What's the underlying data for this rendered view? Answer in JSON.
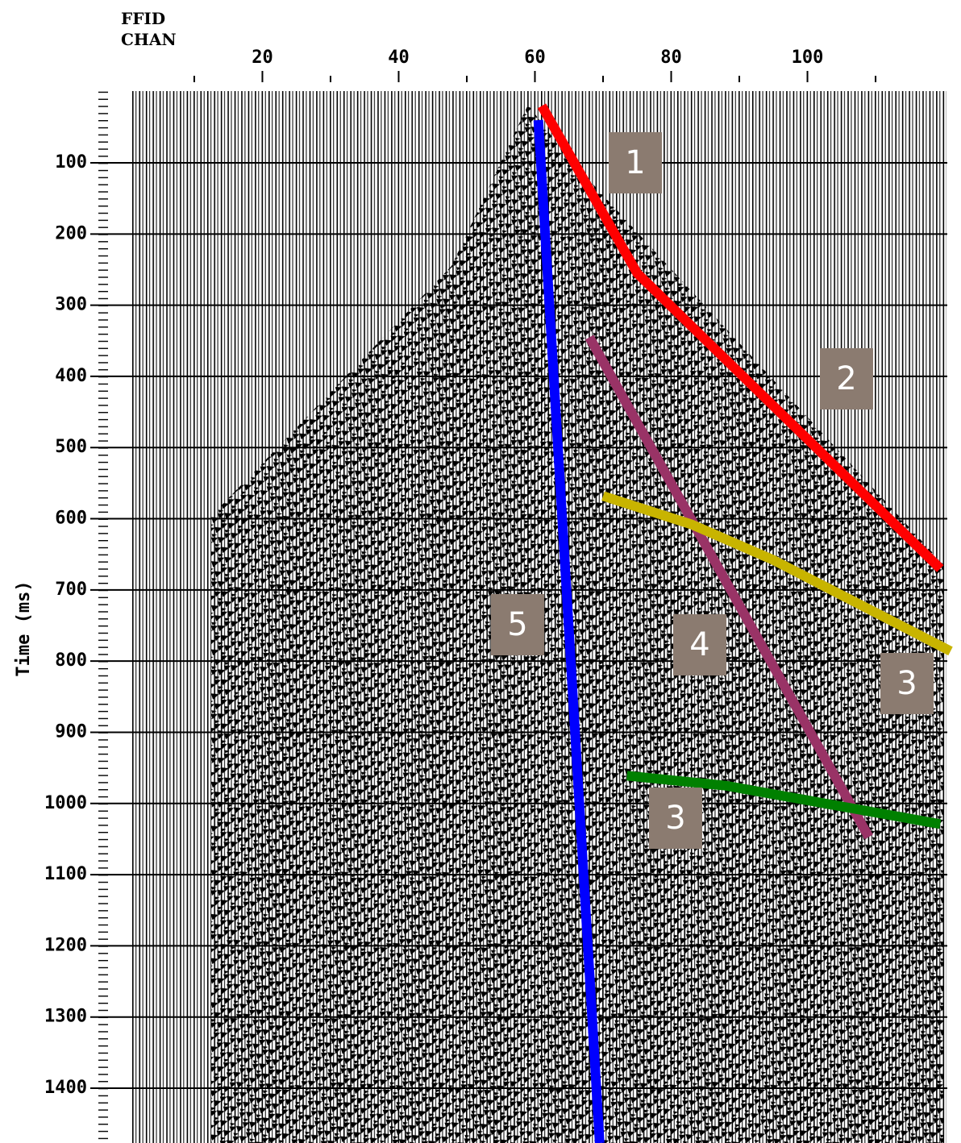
{
  "chart_data": {
    "type": "line",
    "header": [
      "FFID",
      "CHAN"
    ],
    "y_label": "Time (ms)",
    "xlim": [
      -1,
      121
    ],
    "xticks": [
      20,
      40,
      60,
      80,
      100
    ],
    "xminorticks": [
      10,
      30,
      50,
      70,
      90,
      110
    ],
    "ylim": [
      0,
      1477
    ],
    "y_inverted": true,
    "yticks": [
      100,
      200,
      300,
      400,
      500,
      600,
      700,
      800,
      900,
      1000,
      1100,
      1200,
      1300,
      1400
    ],
    "grid": true,
    "series": [
      {
        "color": "#ff0000",
        "x": [
          61,
          75,
          119.5
        ],
        "values": [
          20,
          255,
          670
        ]
      },
      {
        "color": "#0000ff",
        "x": [
          60.5,
          69.5
        ],
        "values": [
          40,
          1477
        ]
      },
      {
        "color": "#993366",
        "x": [
          68,
          109
        ],
        "values": [
          345,
          1047
        ]
      },
      {
        "color": "#c8b400",
        "x": [
          70,
          83,
          95,
          121
        ],
        "values": [
          568,
          608,
          658,
          786
        ]
      },
      {
        "color": "#008000",
        "x": [
          73.5,
          88,
          119.5
        ],
        "values": [
          961,
          975,
          1029
        ]
      }
    ],
    "annotations": [
      "1",
      "2",
      "3",
      "4",
      "5",
      "3"
    ]
  }
}
